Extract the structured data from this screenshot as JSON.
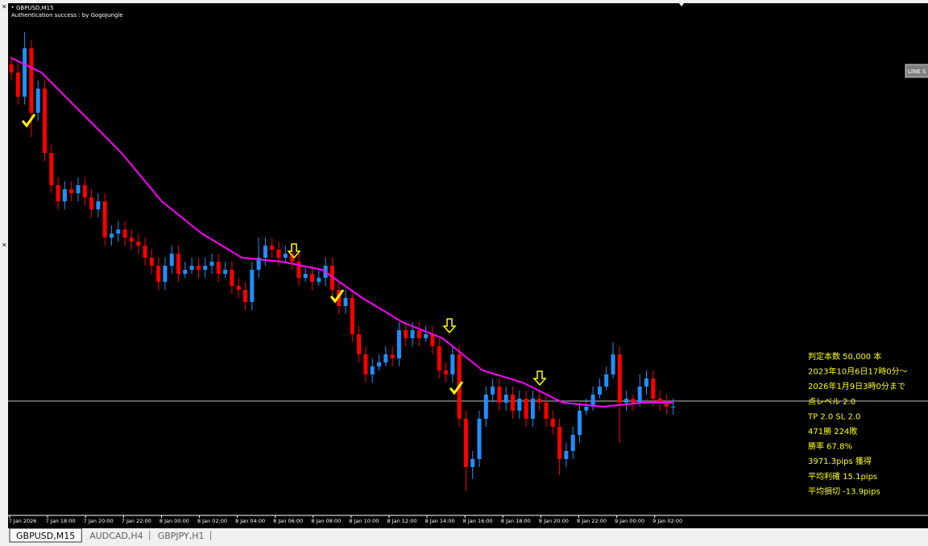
{
  "window": {
    "symbol": "GBPUSD,M15",
    "auth": "Authentication success : by GogoJungle",
    "button": "LINE S"
  },
  "chart_data": {
    "type": "candlestick",
    "up_color": "#1e8fff",
    "down_color": "#ff0000",
    "ylim": [
      0,
      632
    ],
    "candles": [
      [
        560,
        570,
        540,
        550
      ],
      [
        550,
        560,
        510,
        520
      ],
      [
        520,
        600,
        510,
        580
      ],
      [
        580,
        590,
        470,
        500
      ],
      [
        500,
        540,
        490,
        530
      ],
      [
        530,
        540,
        440,
        450
      ],
      [
        450,
        460,
        400,
        410
      ],
      [
        410,
        420,
        380,
        390
      ],
      [
        390,
        415,
        380,
        405
      ],
      [
        405,
        415,
        390,
        400
      ],
      [
        400,
        420,
        390,
        410
      ],
      [
        410,
        420,
        385,
        395
      ],
      [
        395,
        405,
        370,
        380
      ],
      [
        380,
        400,
        370,
        390
      ],
      [
        390,
        400,
        335,
        345
      ],
      [
        345,
        360,
        335,
        350
      ],
      [
        350,
        365,
        340,
        355
      ],
      [
        355,
        365,
        335,
        345
      ],
      [
        345,
        355,
        330,
        340
      ],
      [
        340,
        350,
        325,
        335
      ],
      [
        335,
        345,
        310,
        320
      ],
      [
        320,
        330,
        300,
        310
      ],
      [
        310,
        320,
        280,
        290
      ],
      [
        290,
        320,
        280,
        310
      ],
      [
        310,
        335,
        300,
        325
      ],
      [
        325,
        335,
        290,
        300
      ],
      [
        300,
        315,
        295,
        305
      ],
      [
        305,
        320,
        300,
        310
      ],
      [
        310,
        320,
        295,
        305
      ],
      [
        305,
        320,
        295,
        310
      ],
      [
        310,
        325,
        300,
        315
      ],
      [
        315,
        325,
        290,
        300
      ],
      [
        300,
        315,
        295,
        305
      ],
      [
        305,
        315,
        275,
        285
      ],
      [
        285,
        295,
        270,
        280
      ],
      [
        280,
        290,
        255,
        265
      ],
      [
        265,
        315,
        255,
        305
      ],
      [
        305,
        345,
        295,
        320
      ],
      [
        320,
        345,
        310,
        335
      ],
      [
        335,
        345,
        320,
        330
      ],
      [
        330,
        340,
        310,
        320
      ],
      [
        320,
        335,
        315,
        325
      ],
      [
        325,
        335,
        305,
        315
      ],
      [
        315,
        325,
        285,
        295
      ],
      [
        295,
        310,
        290,
        300
      ],
      [
        300,
        310,
        280,
        290
      ],
      [
        290,
        305,
        285,
        295
      ],
      [
        295,
        320,
        285,
        310
      ],
      [
        310,
        320,
        270,
        280
      ],
      [
        280,
        290,
        250,
        260
      ],
      [
        260,
        280,
        250,
        270
      ],
      [
        270,
        280,
        215,
        225
      ],
      [
        225,
        235,
        190,
        200
      ],
      [
        200,
        210,
        165,
        175
      ],
      [
        175,
        195,
        165,
        185
      ],
      [
        185,
        200,
        180,
        190
      ],
      [
        190,
        210,
        185,
        200
      ],
      [
        200,
        210,
        185,
        195
      ],
      [
        195,
        240,
        185,
        230
      ],
      [
        230,
        240,
        210,
        220
      ],
      [
        220,
        240,
        210,
        230
      ],
      [
        230,
        240,
        210,
        220
      ],
      [
        220,
        235,
        215,
        225
      ],
      [
        225,
        235,
        200,
        210
      ],
      [
        210,
        220,
        170,
        180
      ],
      [
        180,
        190,
        165,
        175
      ],
      [
        175,
        210,
        165,
        200
      ],
      [
        200,
        210,
        110,
        120
      ],
      [
        120,
        130,
        30,
        60
      ],
      [
        60,
        80,
        45,
        70
      ],
      [
        70,
        130,
        60,
        120
      ],
      [
        120,
        160,
        110,
        150
      ],
      [
        150,
        170,
        140,
        160
      ],
      [
        160,
        170,
        130,
        140
      ],
      [
        140,
        160,
        130,
        150
      ],
      [
        150,
        160,
        120,
        130
      ],
      [
        130,
        155,
        120,
        145
      ],
      [
        145,
        155,
        110,
        120
      ],
      [
        120,
        155,
        110,
        145
      ],
      [
        145,
        155,
        130,
        140
      ],
      [
        140,
        150,
        110,
        120
      ],
      [
        120,
        130,
        100,
        110
      ],
      [
        110,
        120,
        50,
        70
      ],
      [
        70,
        90,
        60,
        80
      ],
      [
        80,
        110,
        70,
        100
      ],
      [
        100,
        140,
        90,
        130
      ],
      [
        130,
        145,
        125,
        135
      ],
      [
        135,
        160,
        130,
        150
      ],
      [
        150,
        170,
        145,
        160
      ],
      [
        160,
        185,
        155,
        175
      ],
      [
        175,
        215,
        170,
        200
      ],
      [
        200,
        210,
        90,
        140
      ],
      [
        140,
        155,
        130,
        145
      ],
      [
        145,
        150,
        130,
        140
      ],
      [
        140,
        175,
        135,
        160
      ],
      [
        160,
        180,
        150,
        170
      ],
      [
        170,
        180,
        135,
        145
      ],
      [
        145,
        155,
        130,
        140
      ],
      [
        140,
        150,
        125,
        135
      ],
      [
        135,
        145,
        125,
        135
      ]
    ],
    "ma": {
      "color": "#ff00ff",
      "x": [
        0,
        4.5,
        10.5,
        16.5,
        22.5,
        28.5,
        34.5,
        40.5,
        46.5,
        52.5,
        58.5,
        64.5,
        70.5,
        76.5,
        82.5,
        88.5,
        94.5,
        99
      ],
      "values": [
        568,
        550,
        500,
        450,
        390,
        350,
        320,
        315,
        305,
        270,
        240,
        220,
        180,
        165,
        140,
        135,
        140,
        140
      ]
    },
    "price_line": 142,
    "xtick_labels": [
      "7 Jan 2026",
      "7 Jan 18:00",
      "7 Jan 20:00",
      "7 Jan 22:00",
      "8 Jan 00:00",
      "8 Jan 02:00",
      "8 Jan 04:00",
      "8 Jan 06:00",
      "8 Jan 08:00",
      "8 Jan 10:00",
      "8 Jan 12:00",
      "8 Jan 14:00",
      "8 Jan 16:00",
      "8 Jan 18:00",
      "8 Jan 20:00",
      "8 Jan 22:00",
      "9 Jan 00:00",
      "9 Jan 02:00"
    ]
  },
  "stats": [
    "判定本数 50,000 本",
    "2023年10月6日17時0分～",
    "2026年1月9日3時0分まで",
    "点レベル 2.0",
    "TP 2.0 SL 2.0",
    "471勝 224敗",
    "勝率 67.8%",
    "3971.3pips 獲得",
    "平均利確 15.1pips",
    "平均損切 -13.9pips"
  ],
  "tabs": [
    "GBPUSD,M15",
    "AUDCAD,H4",
    "GBPJPY,H1"
  ]
}
